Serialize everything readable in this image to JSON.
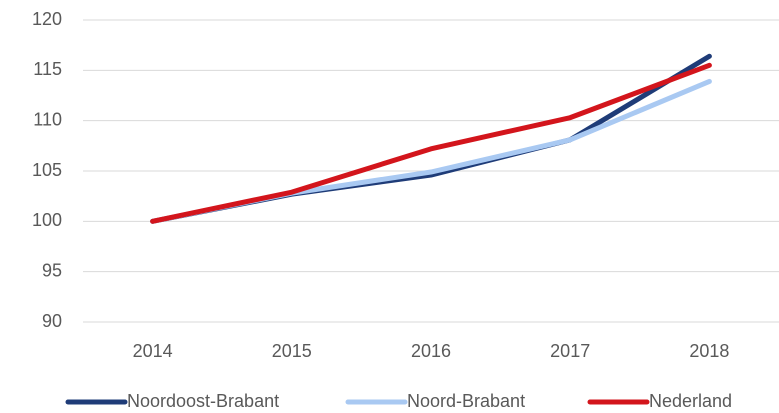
{
  "chart_data": {
    "type": "line",
    "categories": [
      "2014",
      "2015",
      "2016",
      "2017",
      "2018"
    ],
    "series": [
      {
        "name": "Noordoost-Brabant",
        "color": "#1f3c78",
        "values": [
          100,
          102.7,
          104.6,
          108.1,
          116.4
        ]
      },
      {
        "name": "Noord-Brabant",
        "color": "#a9c9f2",
        "values": [
          100,
          102.8,
          104.9,
          108.1,
          113.9
        ]
      },
      {
        "name": "Nederland",
        "color": "#d3151c",
        "values": [
          100,
          102.9,
          107.2,
          110.3,
          115.5
        ]
      }
    ],
    "ylim": [
      90,
      120
    ],
    "yticks": [
      90,
      95,
      100,
      105,
      110,
      115,
      120
    ],
    "grid": true,
    "legend": "bottom"
  }
}
